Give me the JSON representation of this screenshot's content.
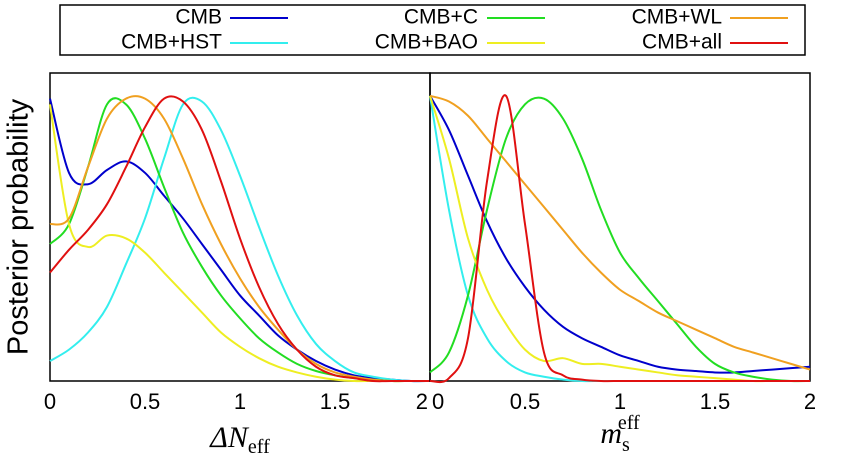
{
  "chart_data": [
    {
      "type": "line",
      "ylabel": "Posterior probability",
      "xlabel": {
        "main": "ΔN",
        "sub": "eff"
      },
      "x": [
        0,
        0.1,
        0.2,
        0.3,
        0.4,
        0.5,
        0.6,
        0.7,
        0.8,
        0.9,
        1,
        1.1,
        1.2,
        1.3,
        1.4,
        1.5,
        1.6,
        1.7,
        1.8,
        1.9,
        2
      ],
      "xlim": [
        0,
        2
      ],
      "xticks": [
        0,
        0.5,
        1,
        1.5,
        2
      ],
      "ylim": [
        0,
        1.08
      ],
      "series": [
        {
          "name": "CMB",
          "color": "#0000cc",
          "values": [
            0.99,
            0.73,
            0.69,
            0.74,
            0.77,
            0.73,
            0.65,
            0.57,
            0.48,
            0.39,
            0.3,
            0.23,
            0.16,
            0.11,
            0.07,
            0.04,
            0.02,
            0.01,
            0.005,
            0,
            0
          ]
        },
        {
          "name": "CMB+HST",
          "color": "#33eeee",
          "values": [
            0.07,
            0.11,
            0.17,
            0.26,
            0.41,
            0.57,
            0.78,
            0.97,
            0.98,
            0.88,
            0.72,
            0.54,
            0.37,
            0.23,
            0.13,
            0.07,
            0.03,
            0.015,
            0.005,
            0,
            0
          ]
        },
        {
          "name": "CMB+C",
          "color": "#22dd22",
          "values": [
            0.48,
            0.55,
            0.75,
            0.97,
            0.97,
            0.85,
            0.68,
            0.52,
            0.4,
            0.3,
            0.22,
            0.15,
            0.1,
            0.06,
            0.035,
            0.02,
            0.01,
            0.005,
            0,
            0,
            0
          ]
        },
        {
          "name": "CMB+BAO",
          "color": "#eeee22",
          "values": [
            0.97,
            0.55,
            0.47,
            0.51,
            0.5,
            0.45,
            0.38,
            0.31,
            0.24,
            0.17,
            0.12,
            0.08,
            0.05,
            0.03,
            0.015,
            0.005,
            0,
            0,
            0,
            0,
            0
          ]
        },
        {
          "name": "CMB+WL",
          "color": "#f0a020",
          "values": [
            0.55,
            0.57,
            0.75,
            0.92,
            0.99,
            0.99,
            0.92,
            0.78,
            0.62,
            0.48,
            0.36,
            0.26,
            0.18,
            0.11,
            0.06,
            0.03,
            0.015,
            0.005,
            0,
            0,
            0
          ]
        },
        {
          "name": "CMB+all",
          "color": "#e01010",
          "values": [
            0.38,
            0.46,
            0.53,
            0.62,
            0.75,
            0.89,
            0.99,
            0.98,
            0.88,
            0.7,
            0.5,
            0.33,
            0.2,
            0.11,
            0.05,
            0.02,
            0.01,
            0,
            0,
            0,
            0
          ]
        }
      ]
    },
    {
      "type": "line",
      "xlabel": {
        "main": "m",
        "sub": "s",
        "sup": "eff"
      },
      "x": [
        0,
        0.1,
        0.2,
        0.3,
        0.4,
        0.5,
        0.6,
        0.7,
        0.8,
        0.9,
        1,
        1.1,
        1.2,
        1.3,
        1.4,
        1.5,
        1.6,
        1.7,
        1.8,
        1.9,
        2
      ],
      "xlim": [
        0,
        2
      ],
      "xticks": [
        0,
        0.5,
        1,
        1.5,
        2
      ],
      "ylim": [
        0,
        1.08
      ],
      "series": [
        {
          "color": "#0000cc",
          "values": [
            1.0,
            0.88,
            0.72,
            0.56,
            0.43,
            0.33,
            0.25,
            0.19,
            0.15,
            0.12,
            0.09,
            0.07,
            0.05,
            0.04,
            0.035,
            0.03,
            0.03,
            0.035,
            0.04,
            0.045,
            0.05
          ]
        },
        {
          "color": "#33eeee",
          "values": [
            1.0,
            0.6,
            0.3,
            0.15,
            0.07,
            0.03,
            0.015,
            0.005,
            0,
            0,
            0,
            0,
            0,
            0,
            0,
            0,
            0,
            0,
            0,
            0,
            0
          ]
        },
        {
          "color": "#22dd22",
          "values": [
            0.03,
            0.1,
            0.3,
            0.6,
            0.85,
            0.97,
            0.99,
            0.92,
            0.78,
            0.6,
            0.45,
            0.36,
            0.28,
            0.2,
            0.12,
            0.06,
            0.03,
            0.015,
            0.005,
            0,
            0
          ]
        },
        {
          "color": "#eeee22",
          "values": [
            1.0,
            0.78,
            0.5,
            0.32,
            0.2,
            0.11,
            0.07,
            0.08,
            0.06,
            0.06,
            0.05,
            0.04,
            0.03,
            0.02,
            0.015,
            0.01,
            0.005,
            0,
            0,
            0,
            0
          ]
        },
        {
          "color": "#f0a020",
          "values": [
            1.0,
            0.98,
            0.93,
            0.85,
            0.77,
            0.69,
            0.61,
            0.53,
            0.45,
            0.38,
            0.32,
            0.28,
            0.24,
            0.21,
            0.18,
            0.15,
            0.12,
            0.1,
            0.08,
            0.06,
            0.04
          ]
        },
        {
          "color": "#e01010",
          "values": [
            0,
            0.01,
            0.15,
            0.7,
            1.0,
            0.55,
            0.1,
            0.02,
            0.005,
            0,
            0,
            0,
            0,
            0,
            0,
            0,
            0,
            0,
            0,
            0,
            0
          ]
        }
      ]
    }
  ]
}
